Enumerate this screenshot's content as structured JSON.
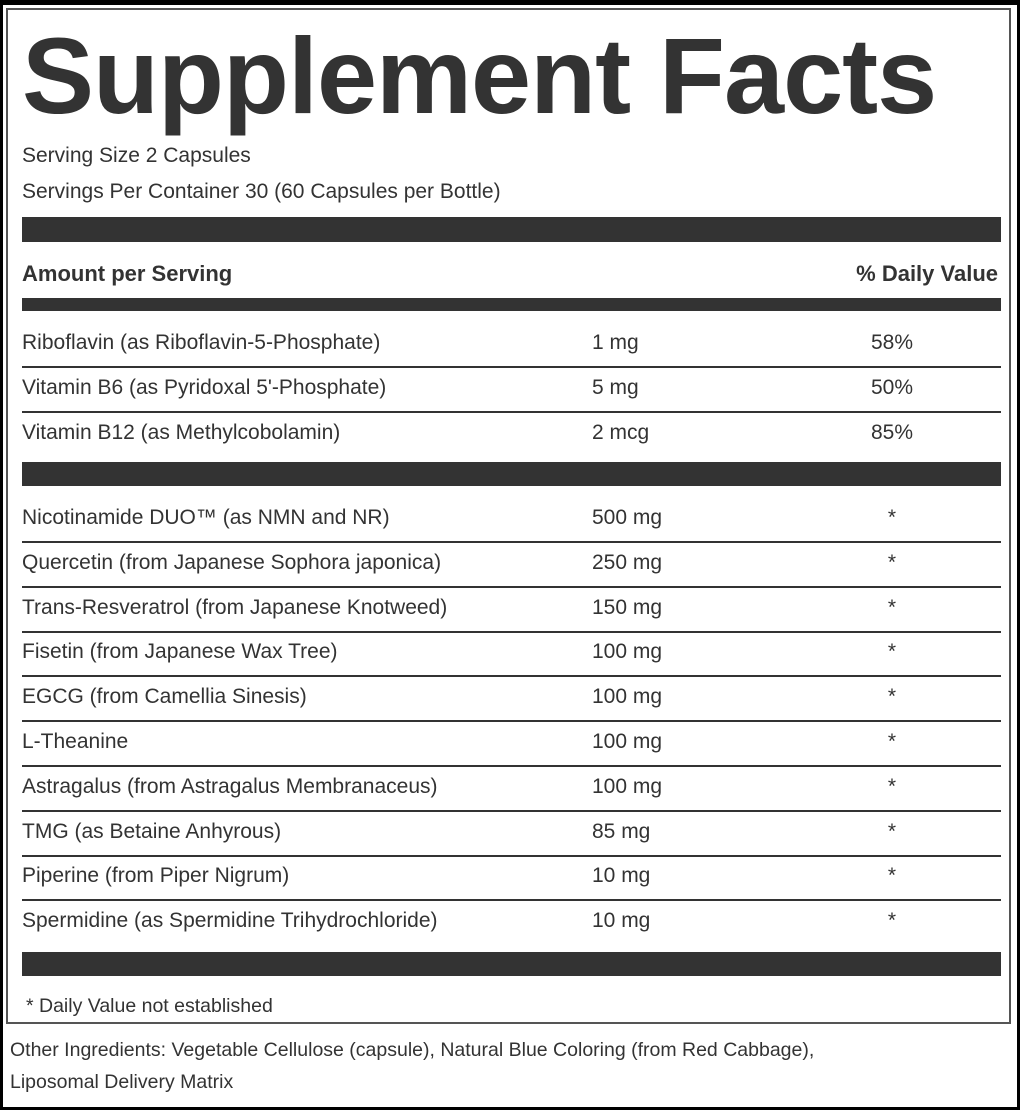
{
  "title": "Supplement Facts",
  "serving_size": "Serving Size 2 Capsules",
  "servings_per_container": "Servings Per Container 30 (60 Capsules per Bottle)",
  "header": {
    "amount": "Amount per Serving",
    "daily_value": "% Daily Value"
  },
  "vitamins": [
    {
      "name": "Riboflavin  (as Riboflavin-5-Phosphate)",
      "amount": "1 mg",
      "dv": "58%"
    },
    {
      "name": "Vitamin B6 (as Pyridoxal 5'-Phosphate)",
      "amount": "5 mg",
      "dv": "50%"
    },
    {
      "name": "Vitamin B12  (as Methylcobolamin)",
      "amount": "2 mcg",
      "dv": "85%"
    }
  ],
  "ingredients": [
    {
      "name": "Nicotinamide DUO™ (as NMN and NR)",
      "amount": "500 mg",
      "dv": "*"
    },
    {
      "name": "Quercetin (from Japanese Sophora japonica)",
      "amount": "250 mg",
      "dv": "*"
    },
    {
      "name": "Trans-Resveratrol (from Japanese Knotweed)",
      "amount": "150 mg",
      "dv": "*"
    },
    {
      "name": "Fisetin (from Japanese Wax Tree)",
      "amount": "100 mg",
      "dv": "*"
    },
    {
      "name": "EGCG (from Camellia Sinesis)",
      "amount": "100 mg",
      "dv": "*"
    },
    {
      "name": "L-Theanine",
      "amount": "100 mg",
      "dv": "*"
    },
    {
      "name": "Astragalus (from Astragalus Membranaceus)",
      "amount": "100 mg",
      "dv": "*"
    },
    {
      "name": "TMG (as Betaine Anhyrous)",
      "amount": "85 mg",
      "dv": "*"
    },
    {
      "name": "Piperine (from Piper Nigrum)",
      "amount": "10 mg",
      "dv": "*"
    },
    {
      "name": "Spermidine (as Spermidine Trihydrochloride)",
      "amount": "10 mg",
      "dv": "*"
    }
  ],
  "footnote": "* Daily Value not established",
  "other_ingredients": {
    "line1": "Other Ingredients: Vegetable Cellulose (capsule), Natural Blue Coloring (from Red Cabbage),",
    "line2": "Liposomal Delivery Matrix"
  }
}
